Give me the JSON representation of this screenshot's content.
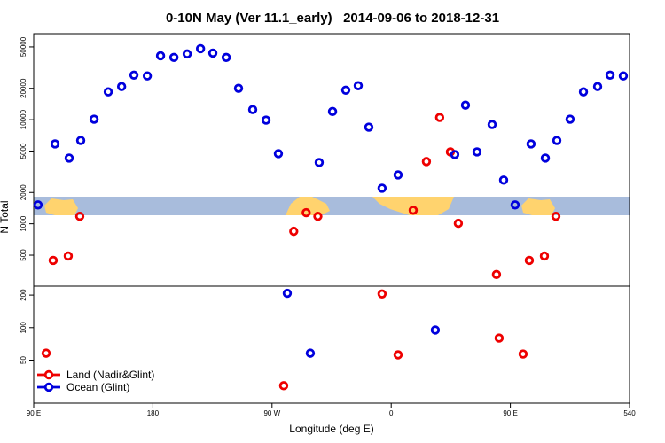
{
  "chart_data": [
    {
      "type": "scatter",
      "title": "0-10N May (Ver 11.1_early)   2014-09-06 to 2018-12-31",
      "ylabel": "N Total",
      "log_y": true,
      "xlim": [
        90,
        540
      ],
      "ylim": [
        252,
        67000
      ],
      "yticks": [
        500,
        1000,
        2000,
        5000,
        10000,
        20000,
        50000
      ],
      "series": [
        {
          "name": "Land (Nadir&Glint)",
          "color": "#ee0000",
          "x": [
            104.7,
            116.1,
            124.8,
            286.4,
            295.8,
            304.6,
            376.6,
            386.6,
            396.6,
            404.7,
            410.7,
            439.5,
            464.3,
            475.7,
            484.4
          ],
          "values": [
            445,
            491,
            1180,
            847,
            1280,
            1180,
            1350,
            3960,
            10500,
            4910,
            1010,
            326,
            445,
            491,
            1180
          ]
        },
        {
          "name": "Ocean (Glint)",
          "color": "#0000dd",
          "x": [
            93.3,
            106.1,
            116.8,
            125.5,
            135.6,
            146.3,
            156.4,
            165.7,
            175.8,
            185.8,
            195.9,
            205.9,
            216.0,
            225.3,
            235.4,
            244.7,
            255.4,
            265.5,
            274.8,
            305.6,
            315.7,
            325.7,
            335.1,
            343.1,
            353.1,
            365.2,
            408.0,
            416.1,
            424.8,
            436.2,
            444.9,
            453.6,
            465.6,
            476.4,
            485.1,
            495.1,
            505.2,
            515.9,
            525.3,
            535.3
          ],
          "values": [
            1520,
            5850,
            4280,
            6320,
            10100,
            18500,
            20800,
            26800,
            26300,
            41100,
            39600,
            42800,
            48100,
            43600,
            39600,
            20000,
            12500,
            9900,
            4720,
            3880,
            12000,
            19200,
            21200,
            8470,
            2200,
            2950,
            4630,
            13800,
            4910,
            8980,
            2630,
            1520,
            5850,
            4280,
            6320,
            10100,
            18500,
            20800,
            26800,
            26300
          ]
        }
      ]
    },
    {
      "type": "scatter",
      "xlabel": "Longitude (deg E)",
      "log_y": true,
      "legend": "lower left",
      "xlim": [
        90,
        540
      ],
      "ylim": [
        20,
        242
      ],
      "xticks": [
        {
          "value": 90,
          "label": "90 E"
        },
        180,
        {
          "value": 270,
          "label": "90 W"
        },
        {
          "value": 360,
          "label": "0"
        },
        {
          "value": 450,
          "label": "90 E"
        },
        540
      ],
      "yticks": [
        50,
        100,
        200
      ],
      "series": [
        {
          "name": "Land (Nadir&Glint)",
          "color": "#ee0000",
          "x": [
            99.4,
            278.8,
            353.1,
            365.2,
            441.5,
            459.6
          ],
          "values": [
            58,
            29,
            205,
            56,
            80,
            57
          ]
        },
        {
          "name": "Ocean (Glint)",
          "color": "#0000dd",
          "x": [
            281.5,
            298.9,
            393.3
          ],
          "values": [
            208,
            58,
            95
          ]
        }
      ]
    }
  ]
}
